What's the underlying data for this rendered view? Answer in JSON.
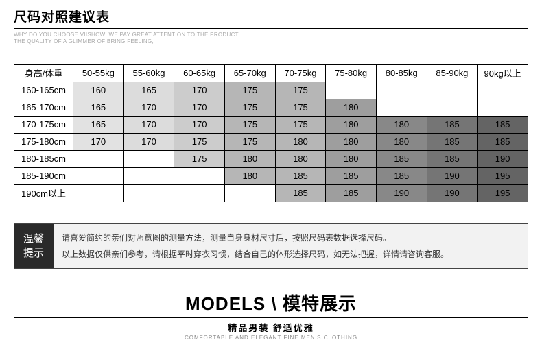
{
  "header": {
    "title": "尺码对照建议表",
    "subtitle_line1": "WHY DO YOU CHOOSE VIISHOW!  WE PAY GREAT ATTENTION TO  THE PRODUCT",
    "subtitle_line2": "THE QUALITY OF A GLIMMER OF BRING FEELING,"
  },
  "table": {
    "corner": "身高/体重",
    "columns": [
      "50-55kg",
      "55-60kg",
      "60-65kg",
      "65-70kg",
      "70-75kg",
      "75-80kg",
      "80-85kg",
      "85-90kg",
      "90kg以上"
    ],
    "rows": [
      {
        "label": "160-165cm",
        "cells": [
          {
            "v": "160",
            "c": "#e2e2e2"
          },
          {
            "v": "165",
            "c": "#dcdcdc"
          },
          {
            "v": "170",
            "c": "#cccccc"
          },
          {
            "v": "175",
            "c": "#b6b6b6"
          },
          {
            "v": "175",
            "c": "#b6b6b6"
          },
          {
            "v": "",
            "c": ""
          },
          {
            "v": "",
            "c": ""
          },
          {
            "v": "",
            "c": ""
          },
          {
            "v": "",
            "c": ""
          }
        ]
      },
      {
        "label": "165-170cm",
        "cells": [
          {
            "v": "165",
            "c": "#e2e2e2"
          },
          {
            "v": "170",
            "c": "#dcdcdc"
          },
          {
            "v": "170",
            "c": "#cccccc"
          },
          {
            "v": "175",
            "c": "#b6b6b6"
          },
          {
            "v": "175",
            "c": "#b6b6b6"
          },
          {
            "v": "180",
            "c": "#9e9e9e"
          },
          {
            "v": "",
            "c": ""
          },
          {
            "v": "",
            "c": ""
          },
          {
            "v": "",
            "c": ""
          }
        ]
      },
      {
        "label": "170-175cm",
        "cells": [
          {
            "v": "165",
            "c": "#e2e2e2"
          },
          {
            "v": "170",
            "c": "#dcdcdc"
          },
          {
            "v": "170",
            "c": "#cccccc"
          },
          {
            "v": "175",
            "c": "#b6b6b6"
          },
          {
            "v": "175",
            "c": "#b6b6b6"
          },
          {
            "v": "180",
            "c": "#9e9e9e"
          },
          {
            "v": "180",
            "c": "#888888"
          },
          {
            "v": "185",
            "c": "#757575"
          },
          {
            "v": "185",
            "c": "#646464"
          }
        ]
      },
      {
        "label": "175-180cm",
        "cells": [
          {
            "v": "170",
            "c": "#e2e2e2"
          },
          {
            "v": "170",
            "c": "#dcdcdc"
          },
          {
            "v": "175",
            "c": "#cccccc"
          },
          {
            "v": "175",
            "c": "#b6b6b6"
          },
          {
            "v": "180",
            "c": "#b6b6b6"
          },
          {
            "v": "180",
            "c": "#9e9e9e"
          },
          {
            "v": "180",
            "c": "#888888"
          },
          {
            "v": "185",
            "c": "#757575"
          },
          {
            "v": "185",
            "c": "#646464"
          }
        ]
      },
      {
        "label": "180-185cm",
        "cells": [
          {
            "v": "",
            "c": ""
          },
          {
            "v": "",
            "c": ""
          },
          {
            "v": "175",
            "c": "#cccccc"
          },
          {
            "v": "180",
            "c": "#b6b6b6"
          },
          {
            "v": "180",
            "c": "#b6b6b6"
          },
          {
            "v": "180",
            "c": "#9e9e9e"
          },
          {
            "v": "185",
            "c": "#888888"
          },
          {
            "v": "185",
            "c": "#757575"
          },
          {
            "v": "190",
            "c": "#646464"
          }
        ]
      },
      {
        "label": "185-190cm",
        "cells": [
          {
            "v": "",
            "c": ""
          },
          {
            "v": "",
            "c": ""
          },
          {
            "v": "",
            "c": ""
          },
          {
            "v": "180",
            "c": "#b6b6b6"
          },
          {
            "v": "185",
            "c": "#b6b6b6"
          },
          {
            "v": "185",
            "c": "#9e9e9e"
          },
          {
            "v": "185",
            "c": "#888888"
          },
          {
            "v": "190",
            "c": "#757575"
          },
          {
            "v": "195",
            "c": "#646464"
          }
        ]
      },
      {
        "label": "190cm以上",
        "cells": [
          {
            "v": "",
            "c": ""
          },
          {
            "v": "",
            "c": ""
          },
          {
            "v": "",
            "c": ""
          },
          {
            "v": "",
            "c": ""
          },
          {
            "v": "185",
            "c": "#b6b6b6"
          },
          {
            "v": "185",
            "c": "#9e9e9e"
          },
          {
            "v": "190",
            "c": "#888888"
          },
          {
            "v": "190",
            "c": "#757575"
          },
          {
            "v": "195",
            "c": "#646464"
          }
        ]
      }
    ]
  },
  "tip": {
    "label_l1": "温馨",
    "label_l2": "提示",
    "line1": "请喜爱简约的亲们对照意图的测量方法，测量自身身材尺寸后，按照尺码表数据选择尺码。",
    "line2": "以上数据仅供亲们参考，请根据平时穿衣习惯，结合自己的体形选择尺码，如无法把握，详情请咨询客服。"
  },
  "models": {
    "title": "MODELS \\ 模特展示",
    "sub1": "精品男装 舒适优雅",
    "sub2": "COMFORTABLE AND ELEGANT FINE MEN'S CLOTHING"
  }
}
